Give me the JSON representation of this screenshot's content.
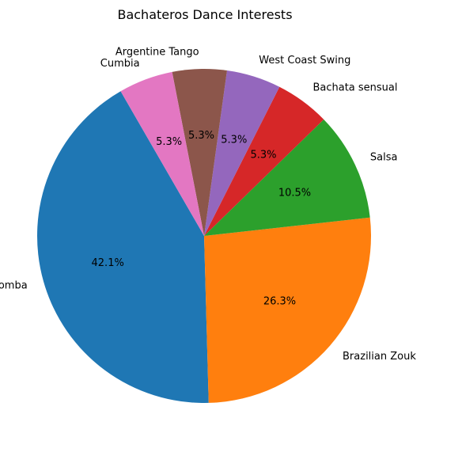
{
  "chart_data": {
    "type": "pie",
    "title": "Bachateros Dance Interests",
    "start_angle_deg": 120,
    "direction": "counterclockwise",
    "autopct_format": "%.1f%%",
    "slices": [
      {
        "label": "Kizomba",
        "value": 8,
        "pct_text": "42.1%",
        "color": "#1f77b4"
      },
      {
        "label": "Brazilian Zouk",
        "value": 5,
        "pct_text": "26.3%",
        "color": "#ff7f0e"
      },
      {
        "label": "Salsa",
        "value": 2,
        "pct_text": "10.5%",
        "color": "#2ca02c"
      },
      {
        "label": "Bachata sensual",
        "value": 1,
        "pct_text": "5.3%",
        "color": "#d62728"
      },
      {
        "label": "West Coast Swing",
        "value": 1,
        "pct_text": "5.3%",
        "color": "#9467bd"
      },
      {
        "label": "Argentine Tango",
        "value": 1,
        "pct_text": "5.3%",
        "color": "#8c564b"
      },
      {
        "label": "Cumbia",
        "value": 1,
        "pct_text": "5.3%",
        "color": "#e377c2"
      }
    ]
  }
}
